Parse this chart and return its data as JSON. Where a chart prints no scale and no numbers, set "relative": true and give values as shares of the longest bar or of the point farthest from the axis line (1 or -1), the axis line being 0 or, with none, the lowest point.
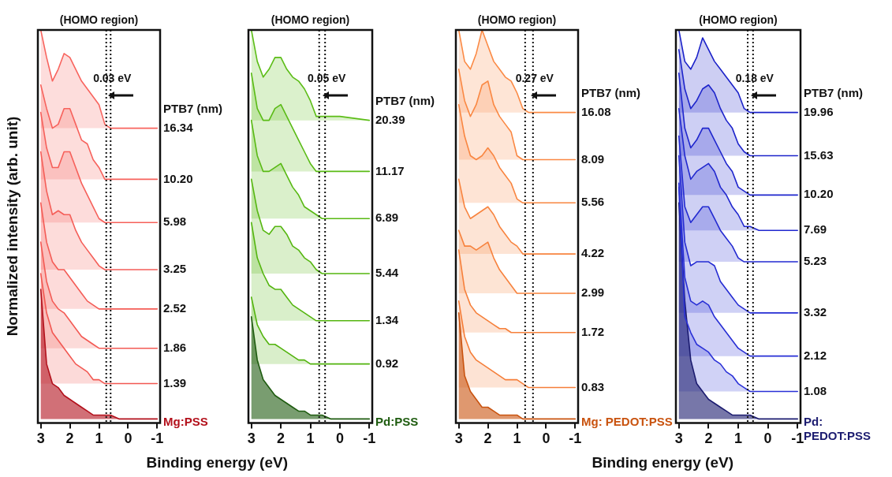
{
  "chart_data": [
    {
      "type": "area",
      "title": "(HOMO region)",
      "ylabel": "Normalized intensity (arb. unit)",
      "xlabel": "Binding energy (eV)",
      "legend_title": "PTB7 (nm)",
      "relative": true,
      "grid": false,
      "legend": false,
      "marker": "none",
      "line_style": "solid",
      "tick_labels": "x",
      "xlim": [
        3.1,
        -1.1
      ],
      "xticks": [
        3,
        2,
        1,
        0,
        -1
      ],
      "x": [
        3,
        2.8,
        2.6,
        2.4,
        2.2,
        2.0,
        1.8,
        1.6,
        1.4,
        1.2,
        1.0,
        0.8,
        0.6,
        0.3,
        0,
        -1
      ],
      "series": [
        {
          "name": "16.34",
          "color": "#f8645e",
          "values": [
            1.0,
            0.93,
            0.87,
            0.9,
            0.94,
            0.93,
            0.9,
            0.87,
            0.85,
            0.83,
            0.81,
            0.76,
            0.75,
            0.75,
            0.75,
            0.75
          ]
        },
        {
          "name": "10.20",
          "color": "#f7625c",
          "values": [
            0.86,
            0.8,
            0.75,
            0.76,
            0.8,
            0.8,
            0.76,
            0.72,
            0.71,
            0.67,
            0.65,
            0.62,
            0.62,
            0.62,
            0.62,
            0.62
          ]
        },
        {
          "name": "5.98",
          "color": "#f6605a",
          "values": [
            0.79,
            0.7,
            0.65,
            0.65,
            0.69,
            0.69,
            0.65,
            0.61,
            0.58,
            0.55,
            0.52,
            0.51,
            0.51,
            0.51,
            0.51,
            0.51
          ]
        },
        {
          "name": "3.25",
          "color": "#f55e58",
          "values": [
            0.69,
            0.59,
            0.53,
            0.54,
            0.53,
            0.53,
            0.49,
            0.46,
            0.44,
            0.42,
            0.4,
            0.39,
            0.39,
            0.39,
            0.39,
            0.39
          ]
        },
        {
          "name": "2.52",
          "color": "#f45c56",
          "values": [
            0.56,
            0.46,
            0.41,
            0.39,
            0.39,
            0.37,
            0.35,
            0.33,
            0.31,
            0.3,
            0.29,
            0.29,
            0.29,
            0.29,
            0.29,
            0.29
          ]
        },
        {
          "name": "1.86",
          "color": "#f35a54",
          "values": [
            0.46,
            0.36,
            0.31,
            0.29,
            0.28,
            0.26,
            0.24,
            0.22,
            0.21,
            0.2,
            0.19,
            0.19,
            0.19,
            0.19,
            0.19,
            0.19
          ]
        },
        {
          "name": "1.39",
          "color": "#f25852",
          "values": [
            0.38,
            0.28,
            0.23,
            0.21,
            0.19,
            0.17,
            0.15,
            0.14,
            0.13,
            0.11,
            0.11,
            0.1,
            0.1,
            0.1,
            0.1,
            0.1
          ]
        },
        {
          "name": "Mg:PSS",
          "color": "#b3111c",
          "values": [
            0.34,
            0.15,
            0.1,
            0.09,
            0.07,
            0.06,
            0.05,
            0.04,
            0.03,
            0.02,
            0.02,
            0.02,
            0.02,
            0.01,
            0.01,
            0.01
          ]
        }
      ],
      "ref_lines": [
        {
          "axis": "x",
          "value": 0.6,
          "line_style": "dotted"
        },
        {
          "axis": "x",
          "value": 0.75,
          "line_style": "dotted"
        }
      ],
      "annotations": [
        "0.03 eV"
      ]
    },
    {
      "type": "area",
      "title": "(HOMO region)",
      "legend_title": "PTB7 (nm)",
      "relative": true,
      "grid": false,
      "legend": false,
      "marker": "none",
      "line_style": "solid",
      "tick_labels": "x",
      "xlim": [
        3.1,
        -1.1
      ],
      "xticks": [
        3,
        2,
        1,
        0,
        -1
      ],
      "x": [
        3,
        2.8,
        2.6,
        2.4,
        2.2,
        2.0,
        1.8,
        1.6,
        1.4,
        1.2,
        1.0,
        0.8,
        0.6,
        0.3,
        0,
        -1
      ],
      "series": [
        {
          "name": "20.39",
          "color": "#5cbd17",
          "values": [
            1.0,
            0.92,
            0.88,
            0.9,
            0.93,
            0.93,
            0.9,
            0.88,
            0.87,
            0.85,
            0.82,
            0.78,
            0.78,
            0.78,
            0.78,
            0.77
          ]
        },
        {
          "name": "11.17",
          "color": "#5abb15",
          "values": [
            0.89,
            0.8,
            0.77,
            0.77,
            0.8,
            0.81,
            0.78,
            0.75,
            0.72,
            0.69,
            0.66,
            0.64,
            0.64,
            0.64,
            0.64,
            0.64
          ]
        },
        {
          "name": "6.89",
          "color": "#58b913",
          "values": [
            0.77,
            0.68,
            0.64,
            0.64,
            0.65,
            0.66,
            0.63,
            0.6,
            0.58,
            0.55,
            0.54,
            0.53,
            0.52,
            0.52,
            0.52,
            0.52
          ]
        },
        {
          "name": "5.44",
          "color": "#56b711",
          "values": [
            0.62,
            0.54,
            0.49,
            0.48,
            0.5,
            0.5,
            0.48,
            0.45,
            0.44,
            0.42,
            0.41,
            0.39,
            0.38,
            0.38,
            0.38,
            0.38
          ]
        },
        {
          "name": "1.34",
          "color": "#54b50f",
          "values": [
            0.51,
            0.42,
            0.38,
            0.35,
            0.34,
            0.34,
            0.32,
            0.3,
            0.29,
            0.28,
            0.27,
            0.26,
            0.26,
            0.26,
            0.26,
            0.26
          ]
        },
        {
          "name": "0.92",
          "color": "#52b30d",
          "values": [
            0.32,
            0.25,
            0.22,
            0.2,
            0.2,
            0.19,
            0.18,
            0.17,
            0.16,
            0.16,
            0.15,
            0.15,
            0.15,
            0.15,
            0.15,
            0.15
          ]
        },
        {
          "name": "Pd:PSS",
          "color": "#1f5c10",
          "values": [
            0.27,
            0.16,
            0.11,
            0.09,
            0.07,
            0.06,
            0.05,
            0.04,
            0.03,
            0.03,
            0.02,
            0.02,
            0.02,
            0.01,
            0.01,
            0.01
          ]
        }
      ],
      "ref_lines": [
        {
          "axis": "x",
          "value": 0.5,
          "line_style": "dotted"
        },
        {
          "axis": "x",
          "value": 0.7,
          "line_style": "dotted"
        }
      ],
      "annotations": [
        "0.05 eV"
      ]
    },
    {
      "type": "area",
      "title": "(HOMO region)",
      "xlabel": "Binding energy (eV)",
      "legend_title": "PTB7 (nm)",
      "relative": true,
      "grid": false,
      "legend": false,
      "marker": "none",
      "line_style": "solid",
      "tick_labels": "x",
      "xlim": [
        3.1,
        -1.1
      ],
      "xticks": [
        3,
        2,
        1,
        0,
        -1
      ],
      "x": [
        3,
        2.8,
        2.6,
        2.4,
        2.2,
        2.0,
        1.8,
        1.6,
        1.4,
        1.2,
        1.0,
        0.8,
        0.6,
        0.3,
        0,
        -1
      ],
      "series": [
        {
          "name": "16.08",
          "color": "#fb8a45",
          "values": [
            1.0,
            0.92,
            0.9,
            0.94,
            1.0,
            0.96,
            0.92,
            0.9,
            0.88,
            0.87,
            0.84,
            0.8,
            0.79,
            0.79,
            0.79,
            0.79
          ]
        },
        {
          "name": "8.09",
          "color": "#fa8843",
          "values": [
            0.9,
            0.82,
            0.78,
            0.81,
            0.86,
            0.87,
            0.81,
            0.78,
            0.76,
            0.74,
            0.68,
            0.67,
            0.67,
            0.67,
            0.67,
            0.67
          ]
        },
        {
          "name": "5.56",
          "color": "#f98641",
          "values": [
            0.81,
            0.73,
            0.68,
            0.67,
            0.68,
            0.7,
            0.68,
            0.65,
            0.63,
            0.61,
            0.57,
            0.56,
            0.56,
            0.56,
            0.56,
            0.56
          ]
        },
        {
          "name": "4.22",
          "color": "#f8843f",
          "values": [
            0.62,
            0.55,
            0.52,
            0.53,
            0.54,
            0.55,
            0.53,
            0.5,
            0.48,
            0.46,
            0.45,
            0.43,
            0.43,
            0.43,
            0.43,
            0.43
          ]
        },
        {
          "name": "2.99",
          "color": "#f7823d",
          "values": [
            0.49,
            0.45,
            0.45,
            0.44,
            0.45,
            0.46,
            0.42,
            0.39,
            0.37,
            0.35,
            0.33,
            0.33,
            0.33,
            0.33,
            0.33,
            0.33
          ]
        },
        {
          "name": "1.72",
          "color": "#f6803b",
          "values": [
            0.44,
            0.34,
            0.3,
            0.28,
            0.27,
            0.26,
            0.25,
            0.24,
            0.24,
            0.23,
            0.23,
            0.23,
            0.23,
            0.23,
            0.23,
            0.23
          ]
        },
        {
          "name": "0.83",
          "color": "#f57e39",
          "values": [
            0.31,
            0.22,
            0.18,
            0.16,
            0.15,
            0.14,
            0.13,
            0.12,
            0.11,
            0.11,
            0.11,
            0.1,
            0.09,
            0.09,
            0.09,
            0.09
          ]
        },
        {
          "name": "Mg: PEDOT:PSS",
          "color": "#c9530f",
          "values": [
            0.28,
            0.12,
            0.08,
            0.06,
            0.04,
            0.04,
            0.03,
            0.02,
            0.02,
            0.02,
            0.02,
            0.01,
            0.01,
            0.01,
            0.01,
            0.01
          ]
        }
      ],
      "ref_lines": [
        {
          "axis": "x",
          "value": 0.45,
          "line_style": "dotted"
        },
        {
          "axis": "x",
          "value": 0.72,
          "line_style": "dotted"
        }
      ],
      "annotations": [
        "0.27 eV"
      ]
    },
    {
      "type": "area",
      "title": "(HOMO region)",
      "legend_title": "PTB7 (nm)",
      "relative": true,
      "grid": false,
      "legend": false,
      "marker": "none",
      "line_style": "solid",
      "tick_labels": "x",
      "xlim": [
        3.1,
        -1.1
      ],
      "xticks": [
        3,
        2,
        1,
        0,
        -1
      ],
      "x": [
        3,
        2.8,
        2.6,
        2.4,
        2.2,
        2.0,
        1.8,
        1.6,
        1.4,
        1.2,
        1.0,
        0.8,
        0.6,
        0.3,
        0,
        -1
      ],
      "series": [
        {
          "name": "19.96",
          "color": "#1b22c9",
          "values": [
            1.0,
            0.92,
            0.9,
            0.93,
            0.98,
            0.95,
            0.92,
            0.9,
            0.88,
            0.86,
            0.84,
            0.8,
            0.79,
            0.79,
            0.79,
            0.79
          ]
        },
        {
          "name": "15.63",
          "color": "#1d24cb",
          "values": [
            0.95,
            0.85,
            0.8,
            0.82,
            0.85,
            0.86,
            0.84,
            0.8,
            0.77,
            0.75,
            0.71,
            0.69,
            0.68,
            0.68,
            0.68,
            0.68
          ]
        },
        {
          "name": "10.20",
          "color": "#1f26cd",
          "values": [
            0.89,
            0.75,
            0.7,
            0.72,
            0.75,
            0.75,
            0.72,
            0.69,
            0.66,
            0.64,
            0.6,
            0.59,
            0.58,
            0.58,
            0.58,
            0.58
          ]
        },
        {
          "name": "7.69",
          "color": "#2128cf",
          "values": [
            0.8,
            0.68,
            0.62,
            0.64,
            0.65,
            0.66,
            0.64,
            0.6,
            0.58,
            0.55,
            0.53,
            0.5,
            0.5,
            0.49,
            0.49,
            0.49
          ]
        },
        {
          "name": "5.23",
          "color": "#232ad1",
          "values": [
            0.73,
            0.55,
            0.51,
            0.53,
            0.55,
            0.55,
            0.52,
            0.49,
            0.47,
            0.45,
            0.42,
            0.41,
            0.41,
            0.41,
            0.41,
            0.41
          ]
        },
        {
          "name": "3.32",
          "color": "#252cd3",
          "values": [
            0.68,
            0.46,
            0.4,
            0.41,
            0.41,
            0.41,
            0.4,
            0.36,
            0.34,
            0.32,
            0.3,
            0.29,
            0.28,
            0.28,
            0.28,
            0.28
          ]
        },
        {
          "name": "2.12",
          "color": "#272ed5",
          "values": [
            0.61,
            0.37,
            0.31,
            0.3,
            0.31,
            0.3,
            0.27,
            0.25,
            0.23,
            0.21,
            0.19,
            0.18,
            0.17,
            0.17,
            0.17,
            0.17
          ]
        },
        {
          "name": "1.08",
          "color": "#2930d7",
          "values": [
            0.6,
            0.27,
            0.23,
            0.2,
            0.19,
            0.18,
            0.16,
            0.15,
            0.13,
            0.12,
            0.1,
            0.09,
            0.08,
            0.08,
            0.08,
            0.08
          ]
        },
        {
          "name": "Pd: PEDOT:PSS",
          "color": "#1c1c70",
          "values": [
            0.56,
            0.31,
            0.16,
            0.1,
            0.08,
            0.06,
            0.05,
            0.04,
            0.03,
            0.02,
            0.02,
            0.02,
            0.02,
            0.01,
            0.01,
            0.01
          ]
        }
      ],
      "ref_lines": [
        {
          "axis": "x",
          "value": 0.5,
          "line_style": "dotted"
        },
        {
          "axis": "x",
          "value": 0.68,
          "line_style": "dotted"
        }
      ],
      "annotations": [
        "0.18 eV"
      ]
    }
  ]
}
